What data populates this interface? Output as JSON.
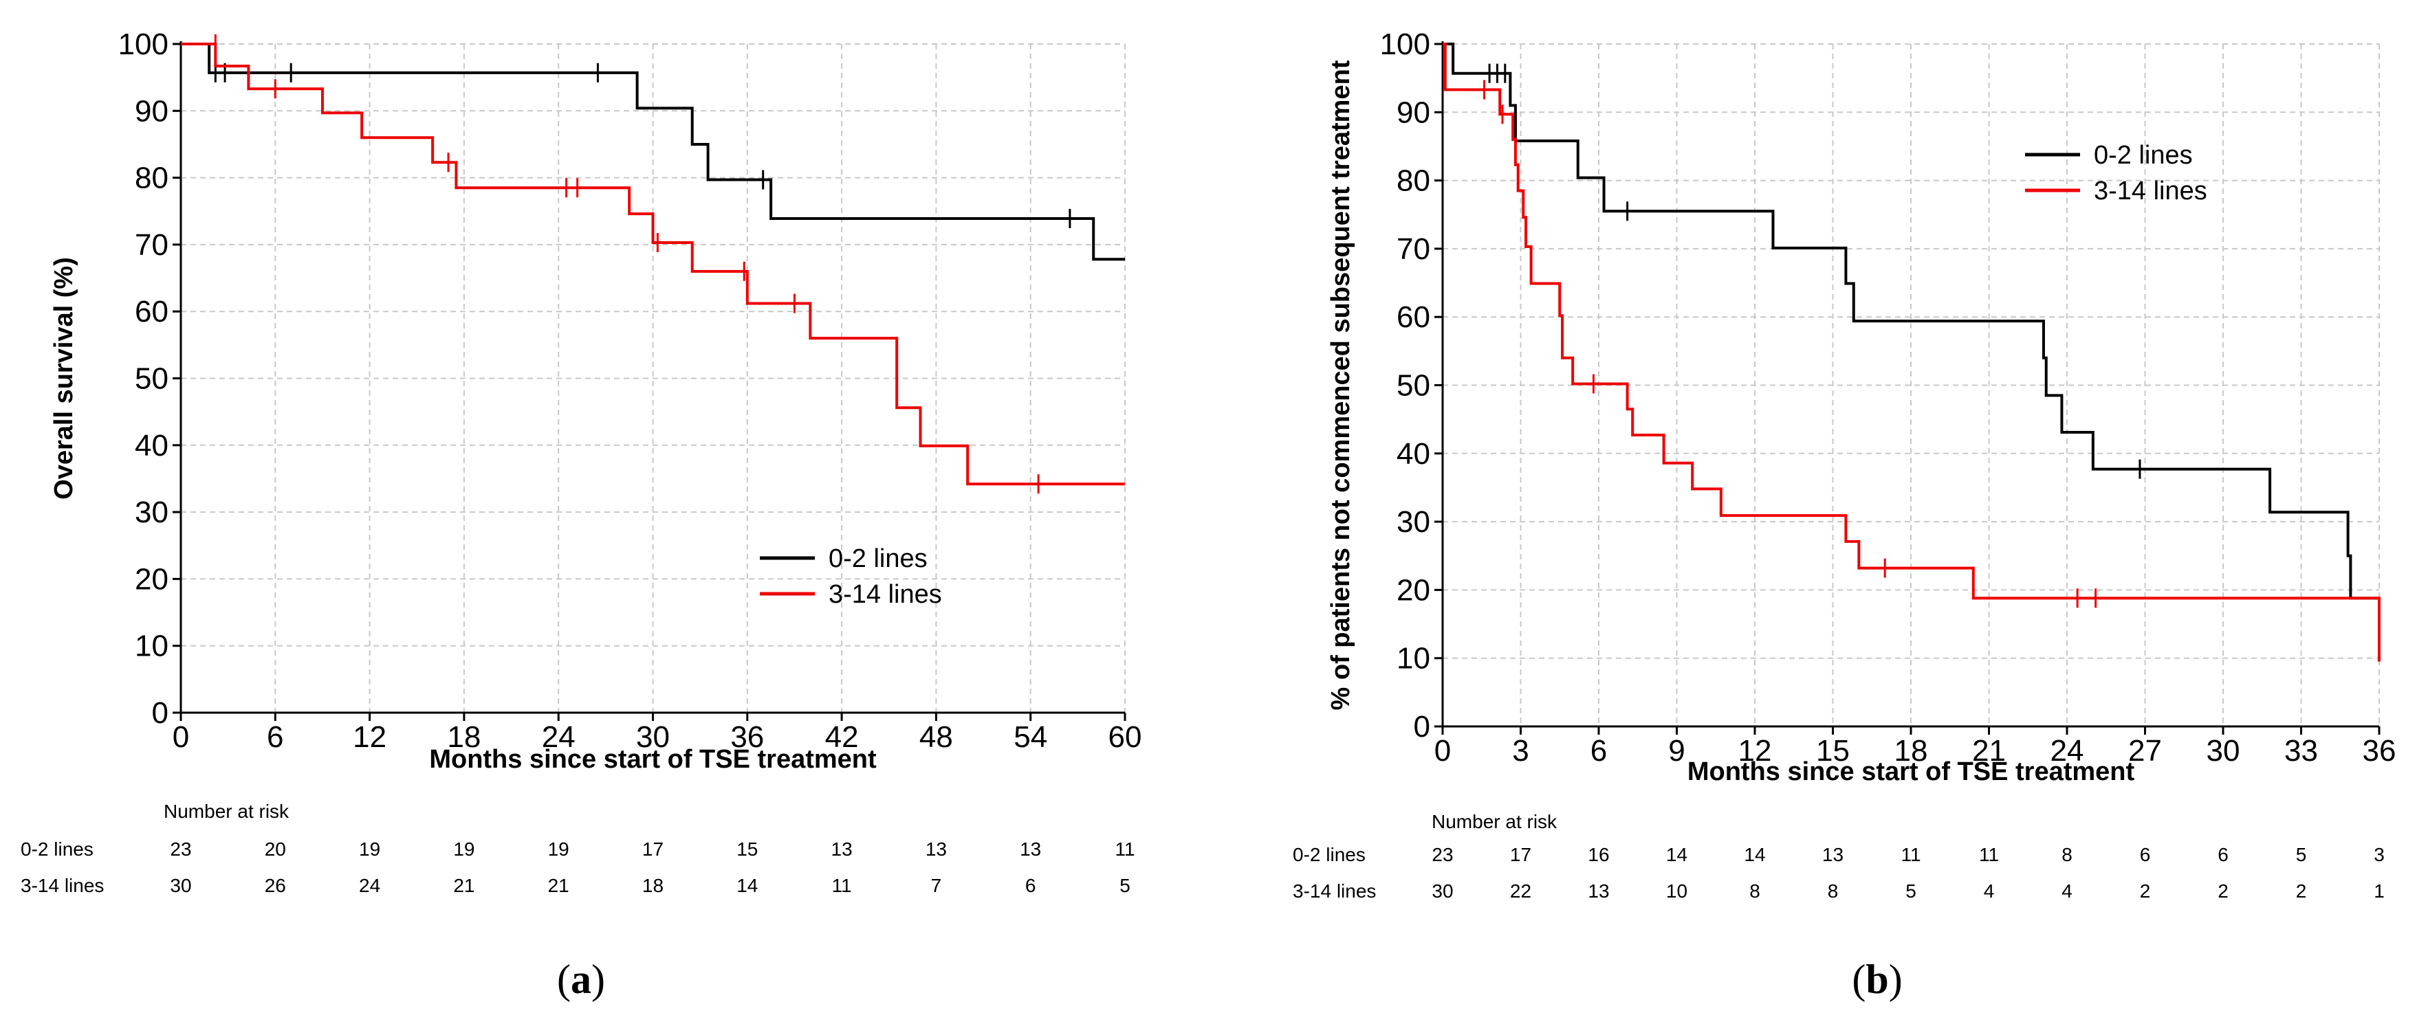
{
  "chart_data": [
    {
      "type": "line",
      "subtype": "kaplan-meier step",
      "panel_label": "a",
      "title": "",
      "xlabel": "Months since start of TSE treatment",
      "ylabel": "Overall survival (%)",
      "xlim": [
        0,
        60
      ],
      "ylim": [
        0,
        100
      ],
      "x_ticks": [
        0,
        6,
        12,
        18,
        24,
        30,
        36,
        42,
        48,
        54,
        60
      ],
      "y_ticks": [
        0,
        10,
        20,
        30,
        40,
        50,
        60,
        70,
        80,
        90,
        100
      ],
      "legend_position": "bottom-right",
      "grid": true,
      "series": [
        {
          "name": "0-2 lines",
          "color": "#000000",
          "steps": [
            [
              0,
              100
            ],
            [
              1.8,
              95.7
            ],
            [
              29,
              90.4
            ],
            [
              32.5,
              85
            ],
            [
              33.5,
              79.7
            ],
            [
              37.5,
              73.9
            ],
            [
              58,
              67.8
            ],
            [
              60,
              67.8
            ]
          ],
          "censors": [
            [
              2.2,
              95.7
            ],
            [
              2.8,
              95.7
            ],
            [
              7,
              95.7
            ],
            [
              26.5,
              95.7
            ],
            [
              37,
              79.7
            ],
            [
              56.5,
              73.9
            ]
          ]
        },
        {
          "name": "3-14 lines",
          "color": "#ee0000",
          "steps": [
            [
              0,
              100
            ],
            [
              2.2,
              96.7
            ],
            [
              4.3,
              93.3
            ],
            [
              9,
              89.7
            ],
            [
              11.5,
              86
            ],
            [
              16,
              82.3
            ],
            [
              17.5,
              78.5
            ],
            [
              28.5,
              74.6
            ],
            [
              30,
              70.3
            ],
            [
              32.5,
              66
            ],
            [
              36,
              61.2
            ],
            [
              40,
              56
            ],
            [
              45.5,
              45.6
            ],
            [
              47,
              39.9
            ],
            [
              50,
              34.2
            ],
            [
              60,
              34.2
            ]
          ],
          "censors": [
            [
              2.2,
              100
            ],
            [
              6,
              93.3
            ],
            [
              17,
              82.3
            ],
            [
              24.5,
              78.5
            ],
            [
              25.2,
              78.5
            ],
            [
              30.3,
              70.3
            ],
            [
              35.8,
              66
            ],
            [
              39,
              61.2
            ],
            [
              54.5,
              34.2
            ]
          ]
        }
      ],
      "risk_table": {
        "title": "Number at risk",
        "times": [
          0,
          6,
          12,
          18,
          24,
          30,
          36,
          42,
          48,
          54,
          60
        ],
        "rows": [
          {
            "label": "0-2 lines",
            "values": [
              "23",
              "20",
              "19",
              "19",
              "19",
              "17",
              "15",
              "13",
              "13",
              "13",
              "11"
            ]
          },
          {
            "label": "3-14 lines",
            "values": [
              "30",
              "26",
              "24",
              "21",
              "21",
              "18",
              "14",
              "11",
              "7",
              "6",
              "5"
            ]
          }
        ]
      }
    },
    {
      "type": "line",
      "subtype": "kaplan-meier step",
      "panel_label": "b",
      "title": "",
      "xlabel": "Months since start of TSE treatment",
      "ylabel": "% of patients not commenced subsequent treatment",
      "xlim": [
        0,
        36
      ],
      "ylim": [
        0,
        100
      ],
      "x_ticks": [
        0,
        3,
        6,
        9,
        12,
        15,
        18,
        21,
        24,
        27,
        30,
        33,
        36
      ],
      "y_ticks": [
        0,
        10,
        20,
        30,
        40,
        50,
        60,
        70,
        80,
        90,
        100
      ],
      "legend_position": "top-right",
      "grid": true,
      "series": [
        {
          "name": "0-2 lines",
          "color": "#000000",
          "steps": [
            [
              0,
              100
            ],
            [
              0.4,
              95.7
            ],
            [
              2.6,
              91
            ],
            [
              2.8,
              85.8
            ],
            [
              5.2,
              80.4
            ],
            [
              6.2,
              75.5
            ],
            [
              12.7,
              70.1
            ],
            [
              15.5,
              64.9
            ],
            [
              15.8,
              59.4
            ],
            [
              23.1,
              54
            ],
            [
              23.2,
              48.5
            ],
            [
              23.8,
              43.1
            ],
            [
              25,
              37.7
            ],
            [
              31.8,
              31.4
            ],
            [
              34.8,
              25
            ],
            [
              34.9,
              18.8
            ],
            [
              36,
              10
            ]
          ],
          "censors": [
            [
              1.8,
              95.7
            ],
            [
              2.1,
              95.7
            ],
            [
              2.4,
              95.7
            ],
            [
              7.1,
              75.5
            ],
            [
              26.8,
              37.7
            ]
          ]
        },
        {
          "name": "3-14 lines",
          "color": "#ee0000",
          "steps": [
            [
              0,
              100
            ],
            [
              0.1,
              93.3
            ],
            [
              2.2,
              89.7
            ],
            [
              2.7,
              86
            ],
            [
              2.8,
              82.3
            ],
            [
              2.9,
              78.5
            ],
            [
              3.1,
              74.6
            ],
            [
              3.2,
              70.3
            ],
            [
              3.4,
              64.9
            ],
            [
              4.5,
              60.2
            ],
            [
              4.6,
              54
            ],
            [
              5,
              50.2
            ],
            [
              7.1,
              46.5
            ],
            [
              7.3,
              42.7
            ],
            [
              8.5,
              38.6
            ],
            [
              9.6,
              34.8
            ],
            [
              10.7,
              30.9
            ],
            [
              15.5,
              27.1
            ],
            [
              16,
              23.2
            ],
            [
              20.4,
              18.8
            ],
            [
              36,
              9.5
            ]
          ],
          "censors": [
            [
              1.6,
              93.3
            ],
            [
              2.3,
              89.7
            ],
            [
              5.8,
              50.2
            ],
            [
              17,
              23.2
            ],
            [
              24.4,
              18.8
            ],
            [
              25.1,
              18.8
            ]
          ]
        }
      ],
      "risk_table": {
        "title": "Number at risk",
        "times": [
          0,
          3,
          6,
          9,
          12,
          15,
          18,
          21,
          24,
          27,
          30,
          33,
          36
        ],
        "rows": [
          {
            "label": "0-2 lines",
            "values": [
              "23",
              "17",
              "16",
              "14",
              "14",
              "13",
              "11",
              "11",
              "8",
              "6",
              "6",
              "5",
              "3"
            ]
          },
          {
            "label": "3-14 lines",
            "values": [
              "30",
              "22",
              "13",
              "10",
              "8",
              "8",
              "5",
              "4",
              "4",
              "2",
              "2",
              "2",
              "1"
            ]
          }
        ]
      }
    }
  ]
}
